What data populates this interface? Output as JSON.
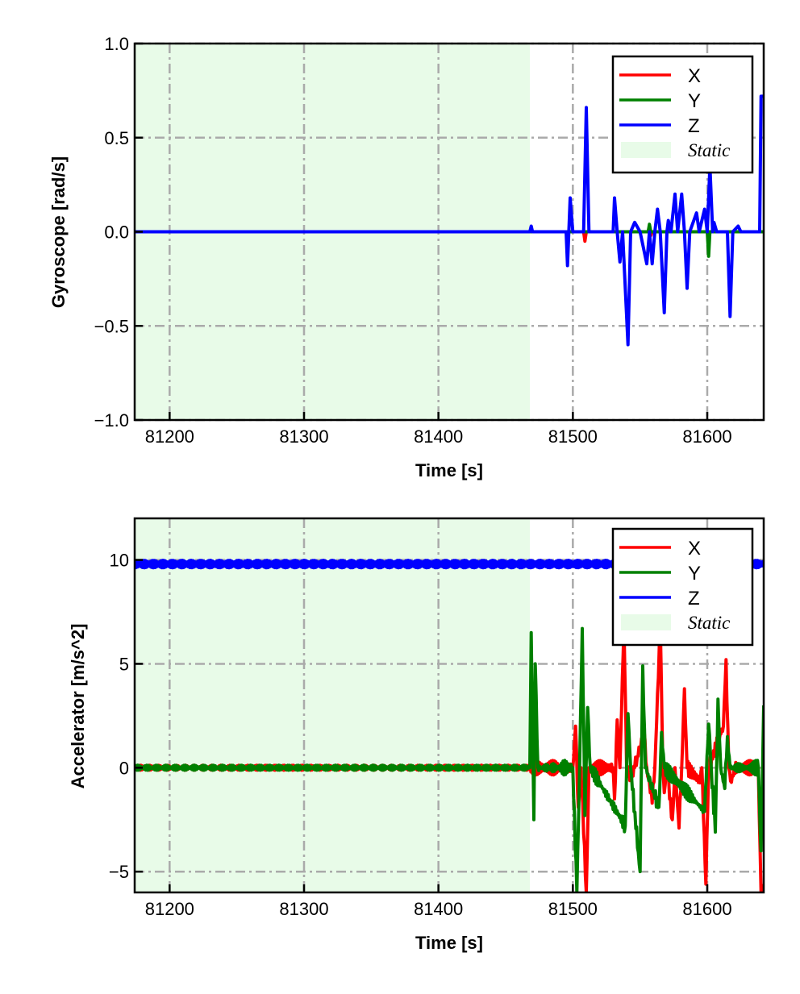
{
  "chart_data": [
    {
      "type": "line",
      "xlabel": "Time [s]",
      "ylabel": "Gyroscope [rad/s]",
      "xlim": [
        81174,
        81642
      ],
      "ylim": [
        -1.0,
        1.0
      ],
      "xticks": [
        81200,
        81300,
        81400,
        81500,
        81600
      ],
      "xtick_labels": [
        "81200",
        "81300",
        "81400",
        "81500",
        "81600"
      ],
      "yticks": [
        -1.0,
        -0.5,
        0.0,
        0.5,
        1.0
      ],
      "ytick_labels": [
        "−1.0",
        "−0.5",
        "0.0",
        "0.5",
        "1.0"
      ],
      "grid": true,
      "legend_position": "top-right",
      "static_region": {
        "label": "Static",
        "x": [
          81174,
          81468
        ],
        "color": "#e8fbe8"
      },
      "series": [
        {
          "name": "X",
          "color": "#ff0000",
          "points": [
            [
              81174,
              0
            ],
            [
              81508,
              0
            ],
            [
              81509,
              -0.05
            ],
            [
              81510,
              0
            ],
            [
              81557,
              0
            ],
            [
              81558,
              -0.02
            ],
            [
              81559,
              0
            ],
            [
              81642,
              0
            ]
          ]
        },
        {
          "name": "Y",
          "color": "#008000",
          "points": [
            [
              81174,
              0
            ],
            [
              81556,
              0
            ],
            [
              81557,
              0.04
            ],
            [
              81558,
              0
            ],
            [
              81600,
              0
            ],
            [
              81601,
              -0.13
            ],
            [
              81602,
              0
            ],
            [
              81642,
              0
            ]
          ]
        },
        {
          "name": "Z",
          "color": "#0000ff",
          "points": [
            [
              81174,
              0
            ],
            [
              81468,
              0
            ],
            [
              81469,
              0.03
            ],
            [
              81470,
              0
            ],
            [
              81495,
              0
            ],
            [
              81496,
              -0.18
            ],
            [
              81498,
              0.18
            ],
            [
              81500,
              0
            ],
            [
              81508,
              0
            ],
            [
              81510,
              0.66
            ],
            [
              81512,
              0
            ],
            [
              81530,
              0
            ],
            [
              81531,
              0.18
            ],
            [
              81533,
              0
            ],
            [
              81535,
              -0.16
            ],
            [
              81537,
              0
            ],
            [
              81541,
              -0.6
            ],
            [
              81543,
              0
            ],
            [
              81546,
              0.05
            ],
            [
              81550,
              0
            ],
            [
              81555,
              -0.17
            ],
            [
              81557,
              0
            ],
            [
              81559,
              -0.17
            ],
            [
              81561,
              0
            ],
            [
              81563,
              0.12
            ],
            [
              81565,
              0
            ],
            [
              81568,
              -0.43
            ],
            [
              81570,
              0
            ],
            [
              81571,
              0.06
            ],
            [
              81573,
              0
            ],
            [
              81576,
              0.2
            ],
            [
              81578,
              0
            ],
            [
              81581,
              0.2
            ],
            [
              81583,
              0
            ],
            [
              81585,
              -0.3
            ],
            [
              81587,
              0
            ],
            [
              81592,
              0.1
            ],
            [
              81594,
              0
            ],
            [
              81598,
              0.12
            ],
            [
              81600,
              0
            ],
            [
              81602,
              0.35
            ],
            [
              81604,
              0
            ],
            [
              81605,
              0.05
            ],
            [
              81607,
              0
            ],
            [
              81615,
              0
            ],
            [
              81617,
              -0.45
            ],
            [
              81619,
              0
            ],
            [
              81623,
              0.03
            ],
            [
              81625,
              0
            ],
            [
              81639,
              0
            ],
            [
              81640,
              0.72
            ],
            [
              81642,
              0.72
            ]
          ]
        }
      ]
    },
    {
      "type": "line",
      "xlabel": "Time [s]",
      "ylabel": "Accelerator [m/s^2]",
      "xlim": [
        81174,
        81642
      ],
      "ylim": [
        -6,
        12
      ],
      "xticks": [
        81200,
        81300,
        81400,
        81500,
        81600
      ],
      "xtick_labels": [
        "81200",
        "81300",
        "81400",
        "81500",
        "81600"
      ],
      "yticks": [
        -5,
        0,
        5,
        10
      ],
      "ytick_labels": [
        "−5",
        "0",
        "5",
        "10"
      ],
      "grid": true,
      "legend_position": "top-right",
      "static_region": {
        "label": "Static",
        "x": [
          81174,
          81468
        ],
        "color": "#e8fbe8"
      },
      "series": [
        {
          "name": "X",
          "color": "#ff0000",
          "points": [
            [
              81174,
              0
            ],
            [
              81500,
              0
            ],
            [
              81502,
              2.0
            ],
            [
              81504,
              -1.9
            ],
            [
              81506,
              0
            ],
            [
              81510,
              -6
            ],
            [
              81512,
              0
            ],
            [
              81530,
              0
            ],
            [
              81531,
              -1.5
            ],
            [
              81533,
              2.3
            ],
            [
              81535,
              0
            ],
            [
              81538,
              7
            ],
            [
              81540,
              0
            ],
            [
              81543,
              -0.6
            ],
            [
              81546,
              0
            ],
            [
              81553,
              1.8
            ],
            [
              81555,
              0
            ],
            [
              81559,
              -1.7
            ],
            [
              81561,
              0
            ],
            [
              81565,
              7
            ],
            [
              81567,
              0
            ],
            [
              81568,
              -1.2
            ],
            [
              81570,
              0
            ],
            [
              81574,
              -2.5
            ],
            [
              81576,
              0
            ],
            [
              81579,
              -2.9
            ],
            [
              81581,
              0
            ],
            [
              81583,
              3.8
            ],
            [
              81585,
              0
            ],
            [
              81594,
              -0.6
            ],
            [
              81596,
              0
            ],
            [
              81599,
              -5.6
            ],
            [
              81601,
              0
            ],
            [
              81612,
              2.0
            ],
            [
              81614,
              5.2
            ],
            [
              81616,
              0
            ],
            [
              81618,
              -0.7
            ],
            [
              81620,
              0
            ],
            [
              81638,
              0
            ],
            [
              81640,
              -6
            ],
            [
              81642,
              -6
            ]
          ]
        },
        {
          "name": "Y",
          "color": "#008000",
          "points": [
            [
              81174,
              0
            ],
            [
              81468,
              0
            ],
            [
              81469,
              6.5
            ],
            [
              81471,
              -2.5
            ],
            [
              81472,
              5.0
            ],
            [
              81474,
              0
            ],
            [
              81500,
              0
            ],
            [
              81503,
              -6
            ],
            [
              81505,
              0
            ],
            [
              81507,
              6.7
            ],
            [
              81509,
              -2.3
            ],
            [
              81511,
              2.9
            ],
            [
              81513,
              0
            ],
            [
              81539,
              -2.8
            ],
            [
              81541,
              2.6
            ],
            [
              81543,
              0
            ],
            [
              81550,
              -5
            ],
            [
              81552,
              4.9
            ],
            [
              81554,
              0
            ],
            [
              81564,
              -1.9
            ],
            [
              81566,
              1.7
            ],
            [
              81568,
              0
            ],
            [
              81598,
              -2.1
            ],
            [
              81601,
              2.1
            ],
            [
              81603,
              0
            ],
            [
              81606,
              -3.1
            ],
            [
              81608,
              3.3
            ],
            [
              81610,
              0
            ],
            [
              81613,
              -1.0
            ],
            [
              81615,
              1.5
            ],
            [
              81617,
              0
            ],
            [
              81638,
              0
            ],
            [
              81640,
              -4.0
            ],
            [
              81642,
              3.0
            ]
          ]
        },
        {
          "name": "Z",
          "color": "#0000ff",
          "points": [
            [
              81174,
              9.8
            ],
            [
              81642,
              9.8
            ]
          ]
        }
      ]
    }
  ]
}
